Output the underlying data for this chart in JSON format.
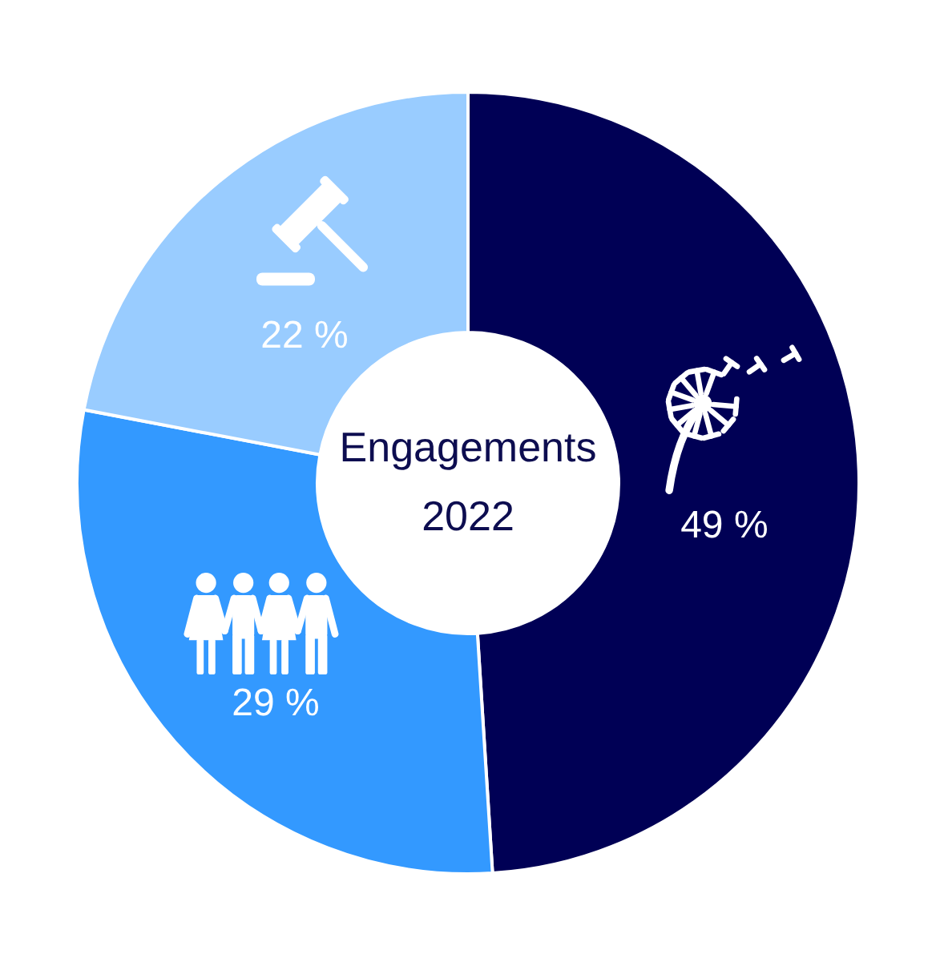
{
  "chart_data": {
    "type": "donut",
    "title": "Engagements",
    "subtitle": "2022",
    "categories": [
      null,
      null,
      null
    ],
    "values": [
      49,
      29,
      22
    ],
    "colors": [
      "#000055",
      "#3399ff",
      "#99ccff"
    ],
    "value_labels": [
      "49 %",
      "29 %",
      "22 %"
    ]
  }
}
